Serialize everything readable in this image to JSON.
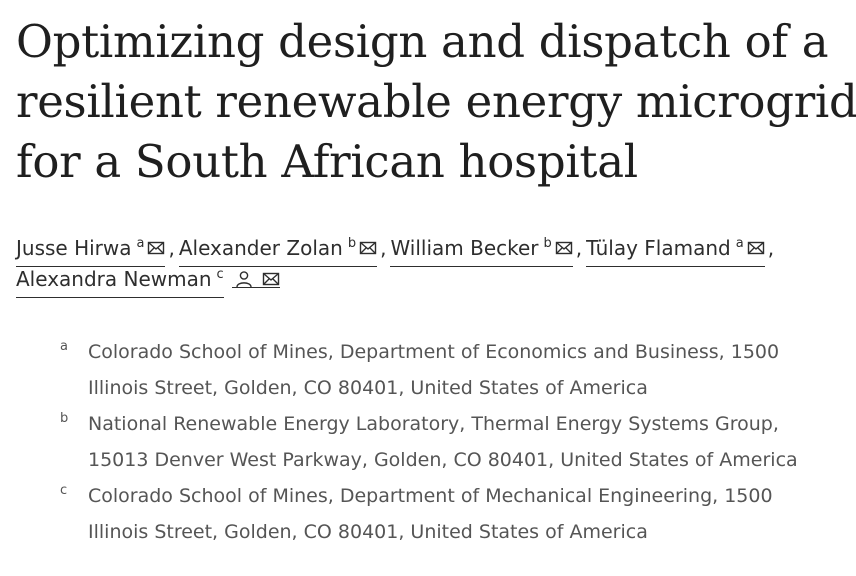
{
  "article": {
    "title_lines": [
      "Optimizing design and dispatch of a",
      "resilient renewable energy microgrid",
      "for a South African hospital"
    ],
    "authors_row1": [
      {
        "name": "Jusse Hirwa",
        "sup": "a",
        "icons": [
          "mail-icon"
        ]
      },
      {
        "name": "Alexander Zolan",
        "sup": "b",
        "icons": [
          "mail-icon"
        ]
      },
      {
        "name": "William Becker",
        "sup": "b",
        "icons": [
          "mail-icon"
        ]
      },
      {
        "name": "Tülay Flamand",
        "sup": "a",
        "icons": [
          "mail-icon"
        ]
      }
    ],
    "authors_row2": [
      {
        "name": "Alexandra Newman",
        "sup": "c",
        "icons": [
          "person-icon",
          "mail-icon"
        ]
      }
    ],
    "separator": ",",
    "affiliations": [
      {
        "mark": "a",
        "lines": [
          "Colorado School of Mines, Department of Economics and Business, 1500",
          "Illinois Street, Golden, CO 80401, United States of America"
        ]
      },
      {
        "mark": "b",
        "lines": [
          "National Renewable Energy Laboratory, Thermal Energy Systems Group,",
          "15013 Denver West Parkway, Golden, CO 80401, United States of America"
        ]
      },
      {
        "mark": "c",
        "lines": [
          "Colorado School of Mines, Department of Mechanical Engineering, 1500",
          "Illinois Street, Golden, CO 80401, United States of America"
        ]
      }
    ]
  },
  "colors": {
    "text": "#1f1f1f",
    "affiliation": "#555555"
  }
}
